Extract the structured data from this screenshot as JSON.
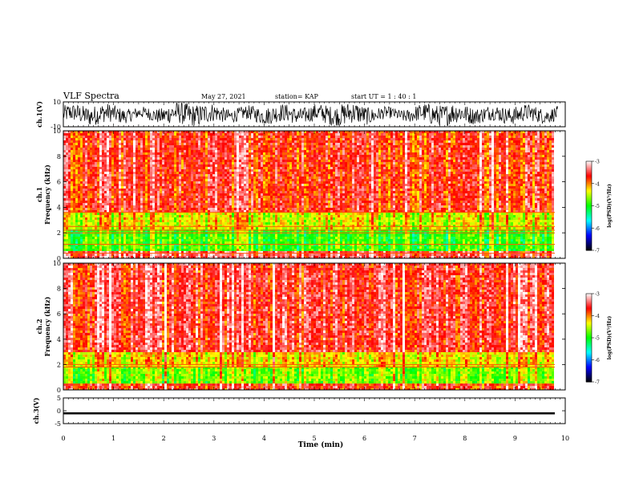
{
  "header": {
    "title": "VLF Spectra",
    "date": "May 27, 2021",
    "station": "station= KAP",
    "start": "start  UT =   1 : 40 : 1"
  },
  "chart_data": [
    {
      "type": "line",
      "panel": "ch1-waveform",
      "ylabel": "ch.1(V)",
      "ylim": [
        -10,
        10
      ],
      "yticks": [
        "10",
        "-10"
      ],
      "x_range_min": [
        0,
        9.85
      ],
      "description_values": "dense noisy waveform oscillating roughly between -7 and 7 V",
      "color": "#000000"
    },
    {
      "type": "heatmap",
      "panel": "ch1-spectrogram",
      "ylabel": "ch.1\nFrequency (kHz)",
      "ylabel_lines": [
        "ch.1",
        "Frequency (kHz)"
      ],
      "ylim": [
        0,
        10
      ],
      "yticks": [
        "0",
        "2",
        "4",
        "6",
        "8",
        "10"
      ],
      "x_range_min": [
        0,
        9.85
      ],
      "bands": [
        {
          "f_from": 0,
          "f_to": 0.6,
          "log_psd": -3.5
        },
        {
          "f_from": 0.6,
          "f_to": 2.2,
          "log_psd": -4.9
        },
        {
          "f_from": 2.2,
          "f_to": 3.5,
          "log_psd": -4.4
        },
        {
          "f_from": 3.5,
          "f_to": 10,
          "log_psd": -3.7
        }
      ],
      "lines_khz": [
        0.4,
        1.1,
        2.0,
        2.2,
        2.5,
        3.6
      ]
    },
    {
      "type": "heatmap",
      "panel": "ch2-spectrogram",
      "ylabel": "ch.2\nFrequency (kHz)",
      "ylabel_lines": [
        "ch.2",
        "Frequency (kHz)"
      ],
      "ylim": [
        0,
        10
      ],
      "yticks": [
        "0",
        "2",
        "4",
        "6",
        "8",
        "10"
      ],
      "x_range_min": [
        0,
        9.85
      ],
      "bands": [
        {
          "f_from": 0,
          "f_to": 0.5,
          "log_psd": -3.7
        },
        {
          "f_from": 0.5,
          "f_to": 1.8,
          "log_psd": -4.7
        },
        {
          "f_from": 1.8,
          "f_to": 3.0,
          "log_psd": -4.3
        },
        {
          "f_from": 3.0,
          "f_to": 10,
          "log_psd": -3.6
        }
      ],
      "lines_khz": [
        1.8,
        2.0
      ]
    },
    {
      "type": "line",
      "panel": "ch3-waveform",
      "ylabel": "ch.3(V)",
      "ylim": [
        -5,
        5
      ],
      "yticks": [
        "5",
        "0",
        "-5"
      ],
      "x_range_min": [
        0,
        9.85
      ],
      "level_v": [
        -1.4,
        -0.6
      ],
      "color": "#000000"
    }
  ],
  "colorbar": {
    "label": "log(PSD)(V²/Hz)",
    "range": [
      -7,
      -3
    ],
    "ticks": [
      "-3",
      "-4",
      "-5",
      "-6",
      "-7"
    ],
    "stops": [
      "#000000",
      "#0000ff",
      "#00ffff",
      "#00ff00",
      "#ffff00",
      "#ff0000",
      "#ffffff"
    ]
  },
  "xaxis": {
    "label": "Time (min)",
    "range": [
      0,
      10
    ],
    "ticks": [
      "0",
      "1",
      "2",
      "3",
      "4",
      "5",
      "6",
      "7",
      "8",
      "9",
      "10"
    ]
  }
}
